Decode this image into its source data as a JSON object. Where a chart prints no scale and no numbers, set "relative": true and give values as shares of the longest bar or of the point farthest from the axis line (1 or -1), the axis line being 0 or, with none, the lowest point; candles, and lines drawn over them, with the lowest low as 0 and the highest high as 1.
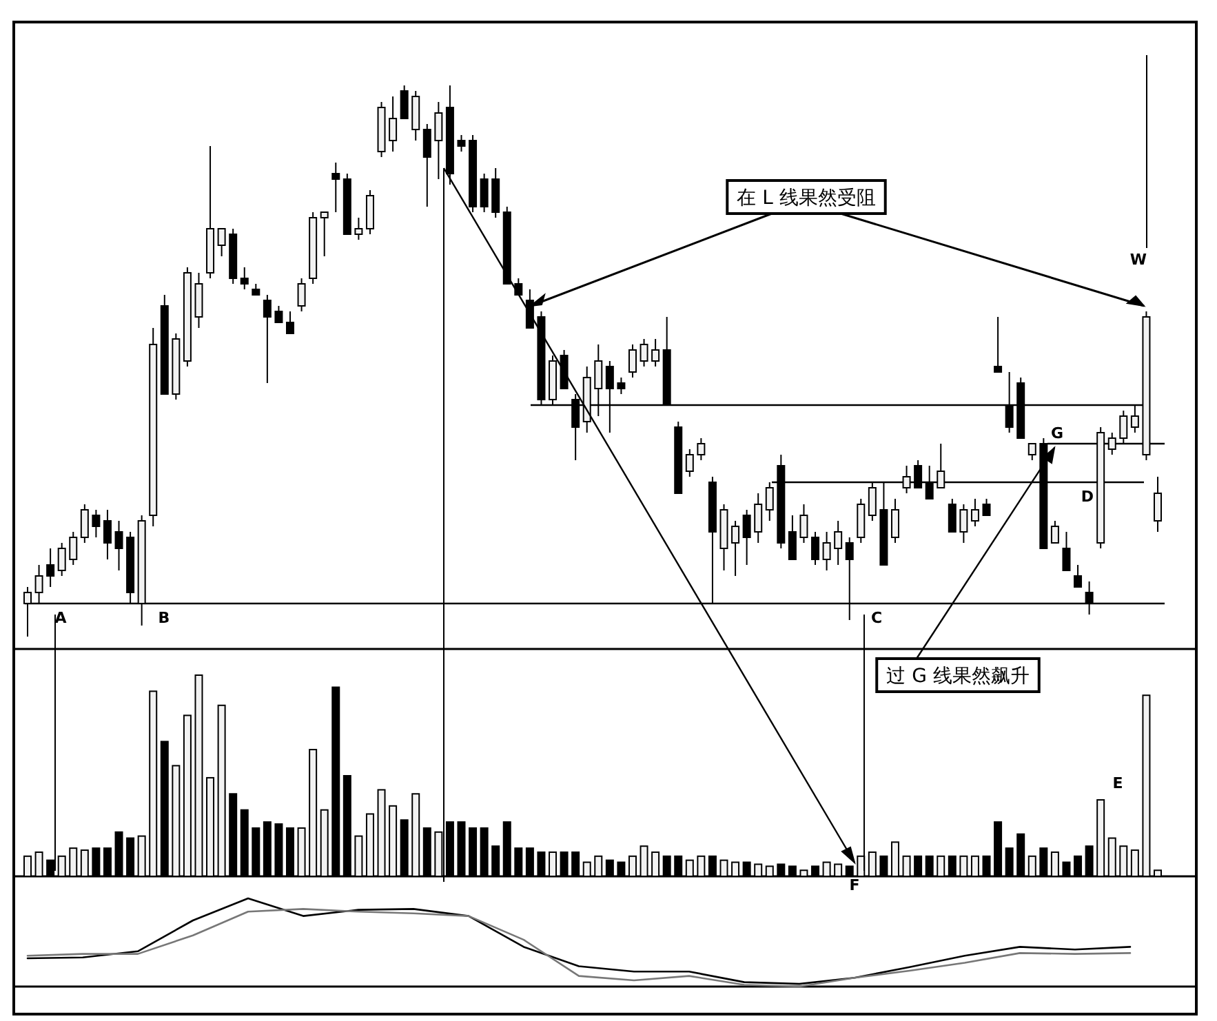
{
  "chart_data": [
    {
      "type": "candlestick",
      "relative": true,
      "categories": [
        null,
        null,
        null,
        null,
        null,
        null,
        null,
        null,
        null,
        null,
        null,
        null,
        null,
        null,
        null,
        null,
        null,
        null,
        null,
        null,
        null,
        null,
        null,
        null,
        null,
        null,
        null,
        null,
        null,
        null,
        null,
        null,
        null,
        null,
        null,
        null,
        null,
        null,
        null,
        null,
        null,
        null,
        null,
        null,
        null,
        null,
        null,
        null,
        null,
        null,
        null,
        null,
        null,
        null,
        null,
        null,
        null,
        null,
        null,
        null,
        null,
        null,
        null,
        null,
        null,
        null,
        null,
        null,
        null,
        null,
        null,
        null,
        null,
        null,
        null,
        null,
        null,
        null,
        null,
        null,
        null,
        null,
        null,
        null,
        null,
        null,
        null,
        null,
        null,
        null,
        null,
        null,
        null,
        null,
        null,
        null,
        null,
        null,
        null,
        null
      ],
      "ohlc": [
        [
          0.06,
          0.09,
          0,
          0.08
        ],
        [
          0.08,
          0.13,
          0.06,
          0.11
        ],
        [
          0.13,
          0.16,
          0.09,
          0.11
        ],
        [
          0.12,
          0.17,
          0.11,
          0.16
        ],
        [
          0.14,
          0.19,
          0.13,
          0.18
        ],
        [
          0.18,
          0.24,
          0.17,
          0.23
        ],
        [
          0.22,
          0.23,
          0.18,
          0.2
        ],
        [
          0.21,
          0.23,
          0.14,
          0.17
        ],
        [
          0.19,
          0.21,
          0.12,
          0.16
        ],
        [
          0.18,
          0.19,
          0.06,
          0.08
        ],
        [
          0.06,
          0.22,
          0.02,
          0.21
        ],
        [
          0.22,
          0.56,
          0.2,
          0.53
        ],
        [
          0.6,
          0.62,
          0.44,
          0.44
        ],
        [
          0.44,
          0.55,
          0.43,
          0.54
        ],
        [
          0.5,
          0.67,
          0.49,
          0.66
        ],
        [
          0.58,
          0.66,
          0.56,
          0.64
        ],
        [
          0.66,
          0.89,
          0.65,
          0.74
        ],
        [
          0.71,
          0.74,
          0.69,
          0.74
        ],
        [
          0.73,
          0.74,
          0.64,
          0.65
        ],
        [
          0.65,
          0.67,
          0.63,
          0.64
        ],
        [
          0.63,
          0.64,
          0.62,
          0.62
        ],
        [
          0.61,
          0.62,
          0.46,
          0.58
        ],
        [
          0.59,
          0.6,
          0.57,
          0.57
        ],
        [
          0.57,
          0.59,
          0.55,
          0.55
        ],
        [
          0.6,
          0.65,
          0.59,
          0.64
        ],
        [
          0.65,
          0.77,
          0.64,
          0.76
        ],
        [
          0.76,
          0.77,
          0.69,
          0.77
        ],
        [
          0.84,
          0.86,
          0.77,
          0.83
        ],
        [
          0.83,
          0.84,
          0.73,
          0.73
        ],
        [
          0.73,
          0.76,
          0.72,
          0.74
        ],
        [
          0.74,
          0.81,
          0.73,
          0.8
        ],
        [
          0.88,
          0.97,
          0.87,
          0.96
        ],
        [
          0.9,
          0.98,
          0.88,
          0.94
        ],
        [
          0.99,
          1,
          0.94,
          0.94
        ],
        [
          0.92,
          0.99,
          0.9,
          0.98
        ],
        [
          0.92,
          0.93,
          0.78,
          0.87
        ],
        [
          0.9,
          0.97,
          0.83,
          0.95
        ],
        [
          0.96,
          1,
          0.82,
          0.84
        ],
        [
          0.9,
          0.91,
          0.88,
          0.89
        ],
        [
          0.9,
          0.91,
          0.77,
          0.78
        ],
        [
          0.83,
          0.84,
          0.77,
          0.78
        ],
        [
          0.83,
          0.85,
          0.76,
          0.77
        ],
        [
          0.77,
          0.78,
          0.64,
          0.64
        ],
        [
          0.64,
          0.65,
          0.62,
          0.62
        ],
        [
          0.61,
          0.63,
          0.56,
          0.56
        ],
        [
          0.58,
          0.59,
          0.42,
          0.43
        ],
        [
          0.43,
          0.51,
          0.42,
          0.5
        ],
        [
          0.51,
          0.52,
          0.45,
          0.45
        ],
        [
          0.43,
          0.44,
          0.32,
          0.38
        ],
        [
          0.39,
          0.49,
          0.37,
          0.47
        ],
        [
          0.45,
          0.53,
          0.4,
          0.5
        ],
        [
          0.49,
          0.5,
          0.37,
          0.45
        ],
        [
          0.46,
          0.47,
          0.44,
          0.45
        ],
        [
          0.48,
          0.53,
          0.47,
          0.52
        ],
        [
          0.5,
          0.54,
          0.49,
          0.53
        ],
        [
          0.5,
          0.54,
          0.49,
          0.52
        ],
        [
          0.52,
          0.58,
          0.42,
          0.42
        ],
        [
          0.38,
          0.39,
          0.26,
          0.26
        ],
        [
          0.3,
          0.34,
          0.29,
          0.33
        ],
        [
          0.33,
          0.36,
          0.32,
          0.35
        ],
        [
          0.28,
          0.29,
          0.06,
          0.19
        ],
        [
          0.16,
          0.24,
          0.12,
          0.23
        ],
        [
          0.17,
          0.21,
          0.11,
          0.2
        ],
        [
          0.22,
          0.23,
          0.13,
          0.18
        ],
        [
          0.19,
          0.26,
          0.17,
          0.24
        ],
        [
          0.23,
          0.28,
          0.21,
          0.27
        ],
        [
          0.31,
          0.33,
          0.16,
          0.17
        ],
        [
          0.19,
          0.22,
          0.14,
          0.14
        ],
        [
          0.18,
          0.24,
          0.17,
          0.22
        ],
        [
          0.18,
          0.19,
          0.13,
          0.14
        ],
        [
          0.14,
          0.19,
          0.12,
          0.17
        ],
        [
          0.16,
          0.21,
          0.13,
          0.19
        ],
        [
          0.17,
          0.18,
          0.03,
          0.14
        ],
        [
          0.18,
          0.25,
          0.17,
          0.24
        ],
        [
          0.22,
          0.28,
          0.21,
          0.27
        ],
        [
          0.23,
          0.28,
          0.13,
          0.13
        ],
        [
          0.18,
          0.25,
          0.17,
          0.23
        ],
        [
          0.27,
          0.31,
          0.26,
          0.29
        ],
        [
          0.31,
          0.32,
          0.27,
          0.27
        ],
        [
          0.28,
          0.31,
          0.25,
          0.25
        ],
        [
          0.27,
          0.35,
          0.27,
          0.3
        ],
        [
          0.24,
          0.25,
          0.19,
          0.19
        ],
        [
          0.19,
          0.24,
          0.17,
          0.23
        ],
        [
          0.21,
          0.25,
          0.2,
          0.23
        ],
        [
          0.24,
          0.25,
          0.22,
          0.22
        ],
        [
          0.49,
          0.58,
          0.48,
          0.48
        ],
        [
          0.42,
          0.48,
          0.37,
          0.38
        ],
        [
          0.46,
          0.47,
          0.36,
          0.36
        ],
        [
          0.33,
          0.35,
          0.32,
          0.35
        ],
        [
          0.35,
          0.36,
          0.16,
          0.16
        ],
        [
          0.17,
          0.21,
          0.17,
          0.2
        ],
        [
          0.16,
          0.19,
          0.12,
          0.12
        ],
        [
          0.11,
          0.13,
          0.09,
          0.09
        ],
        [
          0.08,
          0.1,
          0.04,
          0.06
        ],
        [
          0.17,
          0.38,
          0.16,
          0.37
        ],
        [
          0.34,
          0.37,
          0.33,
          0.36
        ],
        [
          0.36,
          0.41,
          0.35,
          0.4
        ],
        [
          0.38,
          0.42,
          0.37,
          0.4
        ],
        [
          0.33,
          0.59,
          0.32,
          0.58
        ],
        [
          0.21,
          0.29,
          0.19,
          0.26
        ]
      ],
      "ref_lines": [
        {
          "axis": "y",
          "value": 0.06
        },
        {
          "axis": "y",
          "value": 0.42
        },
        {
          "axis": "y",
          "value": 0.28
        },
        {
          "axis": "y",
          "value": 0.35
        }
      ],
      "annotations": [
        "在 L 线果然受阻",
        "A",
        "B",
        "C",
        "G",
        "D",
        "W"
      ]
    },
    {
      "type": "bar",
      "relative": true,
      "categories": [
        null,
        null,
        null,
        null,
        null,
        null,
        null,
        null,
        null,
        null,
        null,
        null,
        null,
        null,
        null,
        null,
        null,
        null,
        null,
        null,
        null,
        null,
        null,
        null,
        null,
        null,
        null,
        null,
        null,
        null,
        null,
        null,
        null,
        null,
        null,
        null,
        null,
        null,
        null,
        null,
        null,
        null,
        null,
        null,
        null,
        null,
        null,
        null,
        null,
        null,
        null,
        null,
        null,
        null,
        null,
        null,
        null,
        null,
        null,
        null,
        null,
        null,
        null,
        null,
        null,
        null,
        null,
        null,
        null,
        null,
        null,
        null,
        null,
        null,
        null,
        null,
        null,
        null,
        null,
        null,
        null,
        null,
        null,
        null,
        null,
        null,
        null,
        null,
        null,
        null,
        null,
        null,
        null,
        null,
        null,
        null,
        null,
        null,
        null,
        null
      ],
      "values": [
        0.1,
        0.12,
        0.08,
        0.1,
        0.14,
        0.13,
        0.14,
        0.14,
        0.22,
        0.19,
        0.2,
        0.92,
        0.67,
        0.55,
        0.8,
        1,
        0.49,
        0.85,
        0.41,
        0.33,
        0.24,
        0.27,
        0.26,
        0.24,
        0.24,
        0.63,
        0.33,
        0.94,
        0.5,
        0.2,
        0.31,
        0.43,
        0.35,
        0.28,
        0.41,
        0.24,
        0.22,
        0.27,
        0.27,
        0.24,
        0.24,
        0.15,
        0.27,
        0.14,
        0.14,
        0.12,
        0.12,
        0.12,
        0.12,
        0.07,
        0.1,
        0.08,
        0.07,
        0.1,
        0.15,
        0.12,
        0.1,
        0.1,
        0.08,
        0.1,
        0.1,
        0.08,
        0.07,
        0.07,
        0.06,
        0.05,
        0.06,
        0.05,
        0.03,
        0.05,
        0.07,
        0.06,
        0.05,
        0.1,
        0.12,
        0.1,
        0.17,
        0.1,
        0.1,
        0.1,
        0.1,
        0.1,
        0.1,
        0.1,
        0.1,
        0.27,
        0.14,
        0.21,
        0.1,
        0.14,
        0.12,
        0.07,
        0.1,
        0.15,
        0.38,
        0.19,
        0.15,
        0.13,
        0.9,
        0.03
      ],
      "colors": [
        "#f2f2f2",
        "#f2f2f2",
        "#000000",
        "#f2f2f2",
        "#f2f2f2",
        "#f2f2f2",
        "#000000",
        "#000000",
        "#000000",
        "#000000",
        "#f2f2f2",
        "#f2f2f2",
        "#000000",
        "#f2f2f2",
        "#f2f2f2",
        "#f2f2f2",
        "#f2f2f2",
        "#f2f2f2",
        "#000000",
        "#000000",
        "#000000",
        "#000000",
        "#000000",
        "#000000",
        "#f2f2f2",
        "#f2f2f2",
        "#f2f2f2",
        "#000000",
        "#000000",
        "#f2f2f2",
        "#f2f2f2",
        "#f2f2f2",
        "#f2f2f2",
        "#000000",
        "#f2f2f2",
        "#000000",
        "#f2f2f2",
        "#000000",
        "#000000",
        "#000000",
        "#000000",
        "#000000",
        "#000000",
        "#000000",
        "#000000",
        "#000000",
        "#f2f2f2",
        "#000000",
        "#000000",
        "#f2f2f2",
        "#f2f2f2",
        "#000000",
        "#000000",
        "#f2f2f2",
        "#f2f2f2",
        "#f2f2f2",
        "#000000",
        "#000000",
        "#f2f2f2",
        "#f2f2f2",
        "#000000",
        "#f2f2f2",
        "#f2f2f2",
        "#000000",
        "#f2f2f2",
        "#f2f2f2",
        "#000000",
        "#000000",
        "#f2f2f2",
        "#000000",
        "#f2f2f2",
        "#f2f2f2",
        "#000000",
        "#f2f2f2",
        "#f2f2f2",
        "#000000",
        "#f2f2f2",
        "#f2f2f2",
        "#000000",
        "#000000",
        "#f2f2f2",
        "#000000",
        "#f2f2f2",
        "#f2f2f2",
        "#000000",
        "#000000",
        "#000000",
        "#000000",
        "#f2f2f2",
        "#000000",
        "#f2f2f2",
        "#000000",
        "#000000",
        "#000000",
        "#f2f2f2",
        "#f2f2f2",
        "#f2f2f2",
        "#f2f2f2",
        "#f2f2f2",
        "#f2f2f2"
      ],
      "annotations": [
        "过 G 线果然飙升",
        "F",
        "E"
      ]
    },
    {
      "type": "line",
      "relative": true,
      "categories": [
        null,
        null,
        null,
        null,
        null,
        null,
        null,
        null,
        null,
        null,
        null,
        null,
        null,
        null,
        null,
        null,
        null,
        null,
        null,
        null,
        null
      ],
      "series": [
        {
          "color": "#000000",
          "values": [
            0.32,
            0.33,
            0.4,
            0.75,
            1,
            0.8,
            0.87,
            0.88,
            0.8,
            0.45,
            0.23,
            0.17,
            0.17,
            0.05,
            0.03,
            0.1,
            0.22,
            0.35,
            0.45,
            0.42,
            0.45
          ]
        },
        {
          "color": "#777777",
          "values": [
            0.35,
            0.37,
            0.37,
            0.58,
            0.85,
            0.88,
            0.85,
            0.83,
            0.8,
            0.53,
            0.12,
            0.07,
            0.12,
            0.02,
            0,
            0.1,
            0.18,
            0.27,
            0.38,
            0.37,
            0.38
          ]
        }
      ]
    }
  ]
}
